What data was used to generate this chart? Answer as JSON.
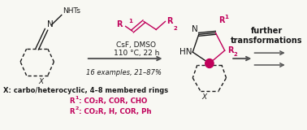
{
  "bg_color": "#f8f8f3",
  "arrow_color": "#555555",
  "pink_color": "#c0005a",
  "black_color": "#1a1a1a",
  "fig_width": 3.78,
  "fig_height": 1.6,
  "dpi": 100,
  "conditions_text": "CsF, DMSO\n110 °C, 22 h",
  "yield_text": "16 examples, 21–87%",
  "x_text": "X: carbo/heterocyclic, 4–8 membered rings",
  "further_text": "further\ntransformations",
  "r1_groups": "CO₂R, COR, CHO",
  "r2_groups": "CO₂R, H, COR, Ph"
}
